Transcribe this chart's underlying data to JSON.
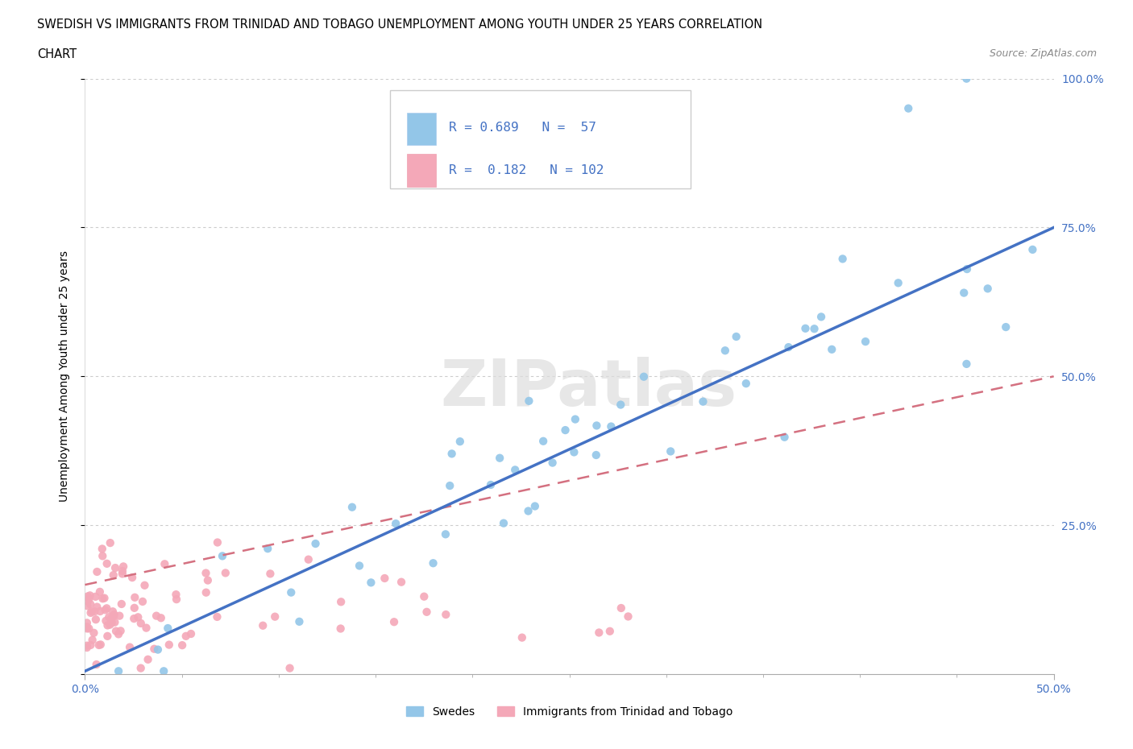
{
  "title_line1": "SWEDISH VS IMMIGRANTS FROM TRINIDAD AND TOBAGO UNEMPLOYMENT AMONG YOUTH UNDER 25 YEARS CORRELATION",
  "title_line2": "CHART",
  "source": "Source: ZipAtlas.com",
  "ylabel": "Unemployment Among Youth under 25 years",
  "xlim": [
    0.0,
    0.5
  ],
  "ylim": [
    0.0,
    1.0
  ],
  "xtick_vals": [
    0.0,
    0.5
  ],
  "xticklabels": [
    "0.0%",
    "50.0%"
  ],
  "ytick_vals": [
    0.0,
    0.25,
    0.5,
    0.75,
    1.0
  ],
  "yticklabels_right": [
    "",
    "25.0%",
    "50.0%",
    "75.0%",
    "100.0%"
  ],
  "swedish_color": "#93C6E8",
  "immigrant_color": "#F4A8B8",
  "swedish_edge": "#6aaed6",
  "immigrant_edge": "#e88fa0",
  "swedish_R": 0.689,
  "swedish_N": 57,
  "immigrant_R": 0.182,
  "immigrant_N": 102,
  "trendline_blue": "#4472C4",
  "trendline_pink": "#d47080",
  "watermark": "ZIPatlas",
  "legend_label_swedish": "Swedes",
  "legend_label_immigrant": "Immigrants from Trinidad and Tobago",
  "info_box_text1": "R = 0.689   N =  57",
  "info_box_text2": "R =  0.182   N = 102"
}
